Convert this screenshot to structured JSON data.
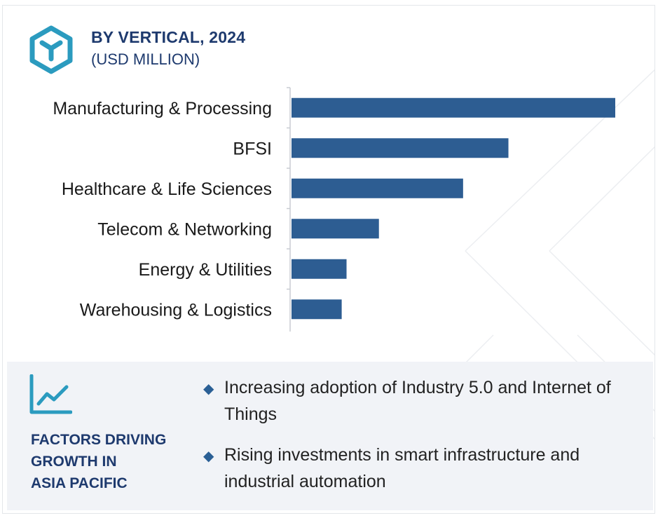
{
  "header": {
    "title": "BY VERTICAL, 2024",
    "subtitle": "(USD MILLION)",
    "icon": "cube-logo-icon"
  },
  "colors": {
    "bar": "#2d5d92",
    "title": "#1e3a6e",
    "icon_teal": "#2b9bbf",
    "panel_bg": "#f1f3f7"
  },
  "chart_data": {
    "type": "bar",
    "orientation": "horizontal",
    "title": "BY VERTICAL, 2024",
    "subtitle": "(USD MILLION)",
    "categories": [
      "Manufacturing & Processing",
      "BFSI",
      "Healthcare & Life Sciences",
      "Telecom & Networking",
      "Energy & Utilities",
      "Warehousing & Logistics"
    ],
    "values": [
      100,
      67,
      53,
      27,
      17,
      15.5
    ],
    "xlim": [
      0,
      100
    ],
    "grid": false,
    "legend": "none",
    "value_labels_shown": false
  },
  "factors": {
    "icon": "line-chart-icon",
    "title_lines": [
      "FACTORS DRIVING",
      "GROWTH IN",
      "ASIA PACIFIC"
    ],
    "bullet_icon": "diamond-icon",
    "bullets": [
      "Increasing adoption of Industry 5.0 and Internet of Things",
      "Rising investments in smart infrastructure and industrial automation"
    ]
  }
}
